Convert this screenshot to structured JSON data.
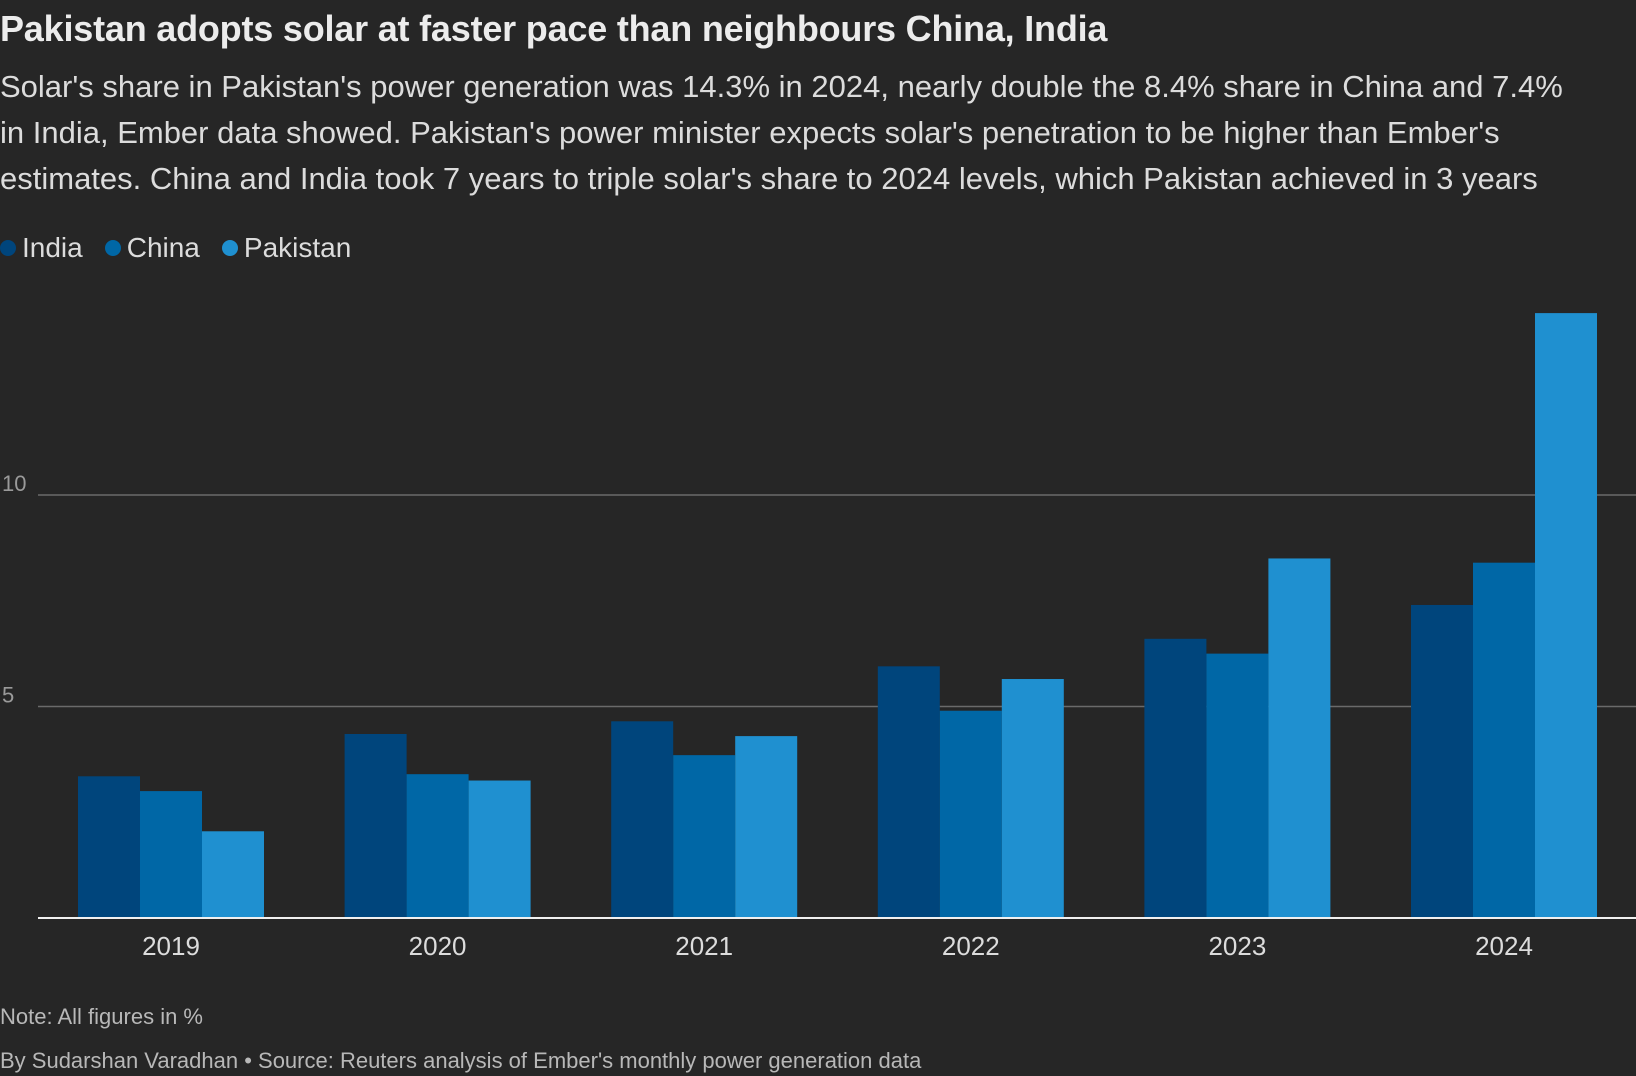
{
  "title": "Pakistan adopts solar at faster pace than neighbours China, India",
  "subtitle_lines": [
    "Solar's share in Pakistan's power generation was 14.3% in 2024, nearly double the 8.4% share in China and 7.4%",
    "in India, Ember data showed. Pakistan's power minister expects solar's penetration to be higher than Ember's",
    "estimates. China and India took 7 years to triple solar's share to 2024 levels, which Pakistan achieved in 3 years"
  ],
  "legend": [
    {
      "label": "India",
      "color": "#00457c"
    },
    {
      "label": "China",
      "color": "#0067a6"
    },
    {
      "label": "Pakistan",
      "color": "#1f90d0"
    }
  ],
  "chart_data": {
    "type": "bar",
    "categories": [
      "2019",
      "2020",
      "2021",
      "2022",
      "2023",
      "2024"
    ],
    "series": [
      {
        "name": "India",
        "color": "#00457c",
        "values": [
          3.35,
          4.35,
          4.65,
          5.95,
          6.6,
          7.4
        ]
      },
      {
        "name": "China",
        "color": "#0067a6",
        "values": [
          3.0,
          3.4,
          3.85,
          4.9,
          6.25,
          8.4
        ]
      },
      {
        "name": "Pakistan",
        "color": "#1f90d0",
        "values": [
          2.05,
          3.25,
          4.3,
          5.65,
          8.5,
          14.3
        ]
      }
    ],
    "y_ticks": [
      {
        "value": 5,
        "label": "5"
      },
      {
        "value": 10,
        "label": "10"
      }
    ],
    "ylim": [
      0,
      15.5
    ],
    "xlabel": "",
    "ylabel": "",
    "grid": true
  },
  "note": "Note: All figures in %",
  "byline": "By Sudarshan Varadhan • Source: Reuters analysis of Ember's monthly power generation data",
  "colors": {
    "background": "#262626",
    "gridline": "#6a6a6a",
    "baseline": "#f0f0f0",
    "tick_label": "#9a9a9a",
    "category_label": "#dcdcdc"
  }
}
